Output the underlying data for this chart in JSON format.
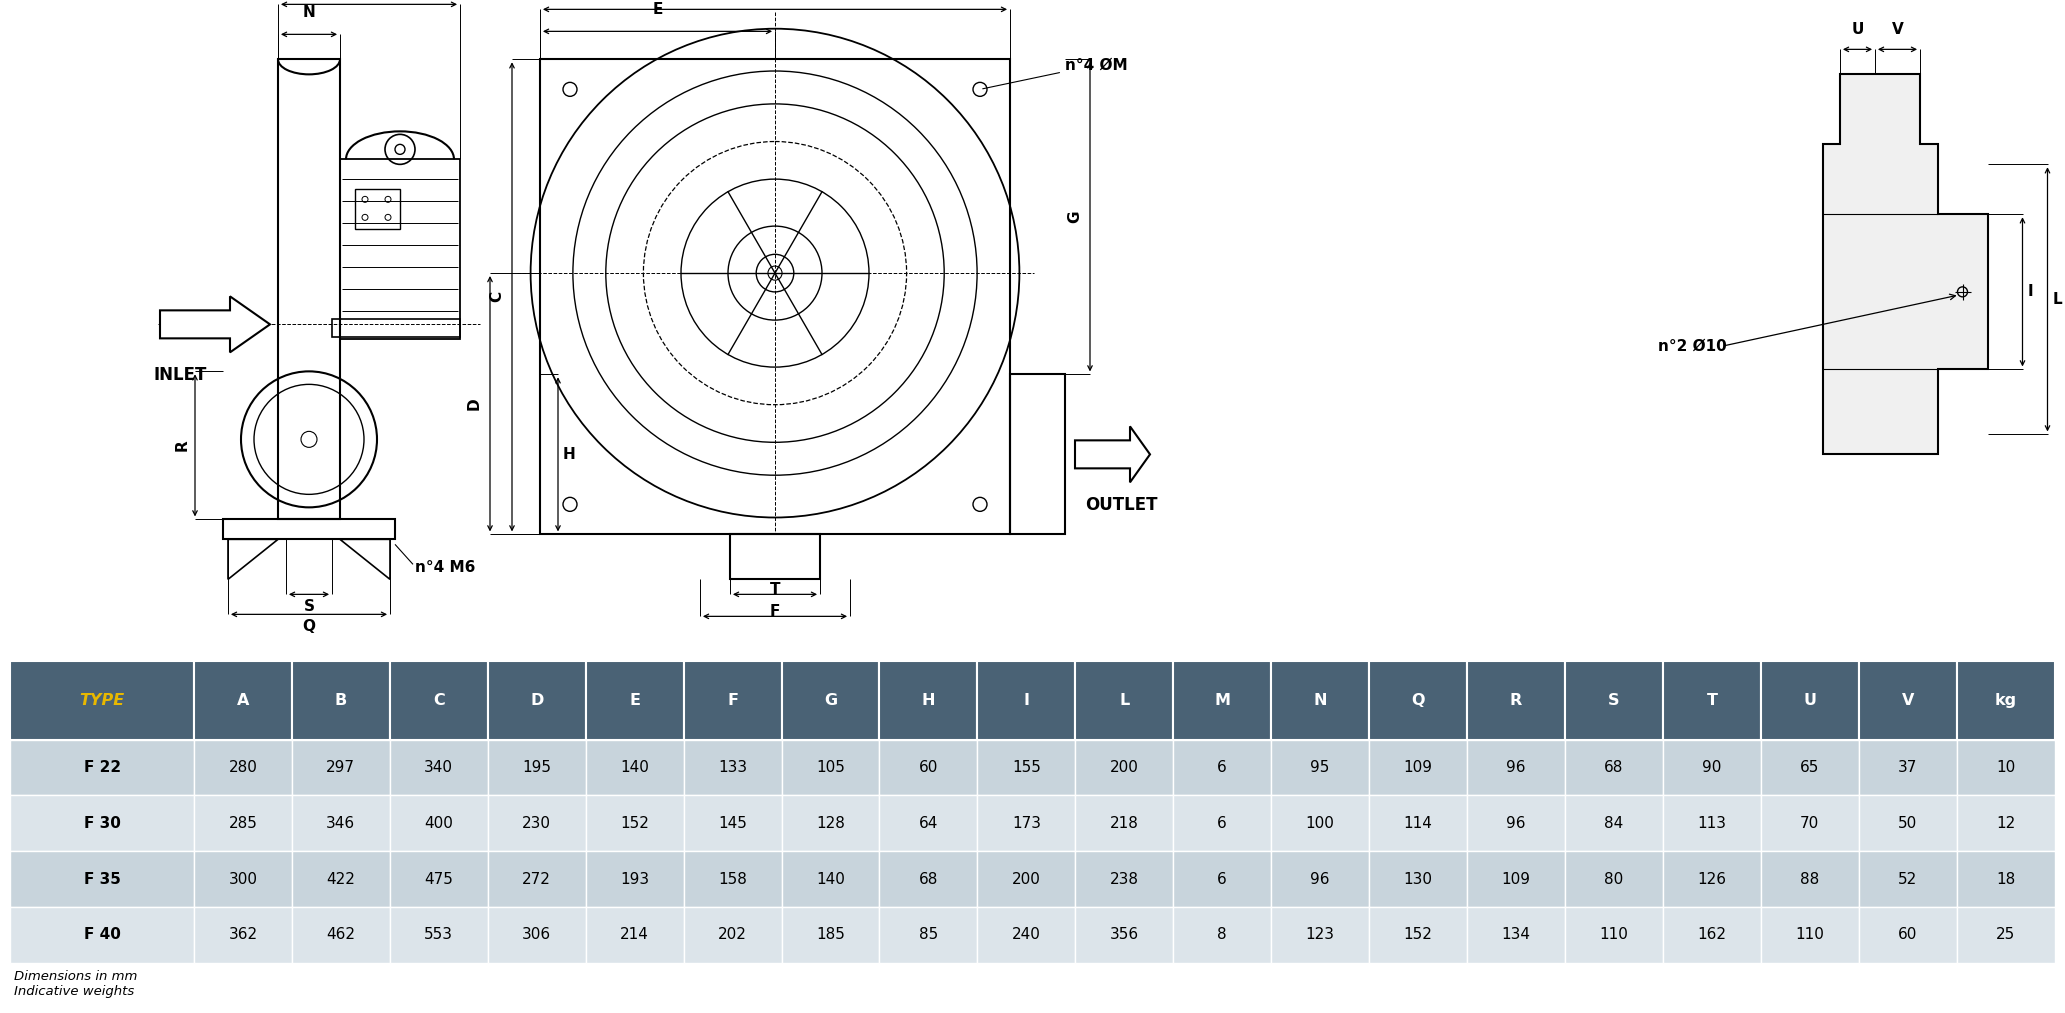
{
  "table_header": [
    "TYPE",
    "A",
    "B",
    "C",
    "D",
    "E",
    "F",
    "G",
    "H",
    "I",
    "L",
    "M",
    "N",
    "Q",
    "R",
    "S",
    "T",
    "U",
    "V",
    "kg"
  ],
  "table_rows": [
    [
      "F 22",
      "280",
      "297",
      "340",
      "195",
      "140",
      "133",
      "105",
      "60",
      "155",
      "200",
      "6",
      "95",
      "109",
      "96",
      "68",
      "90",
      "65",
      "37",
      "10"
    ],
    [
      "F 30",
      "285",
      "346",
      "400",
      "230",
      "152",
      "145",
      "128",
      "64",
      "173",
      "218",
      "6",
      "100",
      "114",
      "96",
      "84",
      "113",
      "70",
      "50",
      "12"
    ],
    [
      "F 35",
      "300",
      "422",
      "475",
      "272",
      "193",
      "158",
      "140",
      "68",
      "200",
      "238",
      "6",
      "96",
      "130",
      "109",
      "80",
      "126",
      "88",
      "52",
      "18"
    ],
    [
      "F 40",
      "362",
      "462",
      "553",
      "306",
      "214",
      "202",
      "185",
      "85",
      "240",
      "356",
      "8",
      "123",
      "152",
      "134",
      "110",
      "162",
      "110",
      "60",
      "25"
    ]
  ],
  "header_bg": "#4a6275",
  "row_bg_odd": "#c8d4dc",
  "row_bg_even": "#dce4ea",
  "header_text_color": "#ffffff",
  "type_col_color": "#e8b800",
  "row_text_color": "#000000",
  "footer_text": "Dimensions in mm\nIndicative weights",
  "background_color": "#ffffff"
}
